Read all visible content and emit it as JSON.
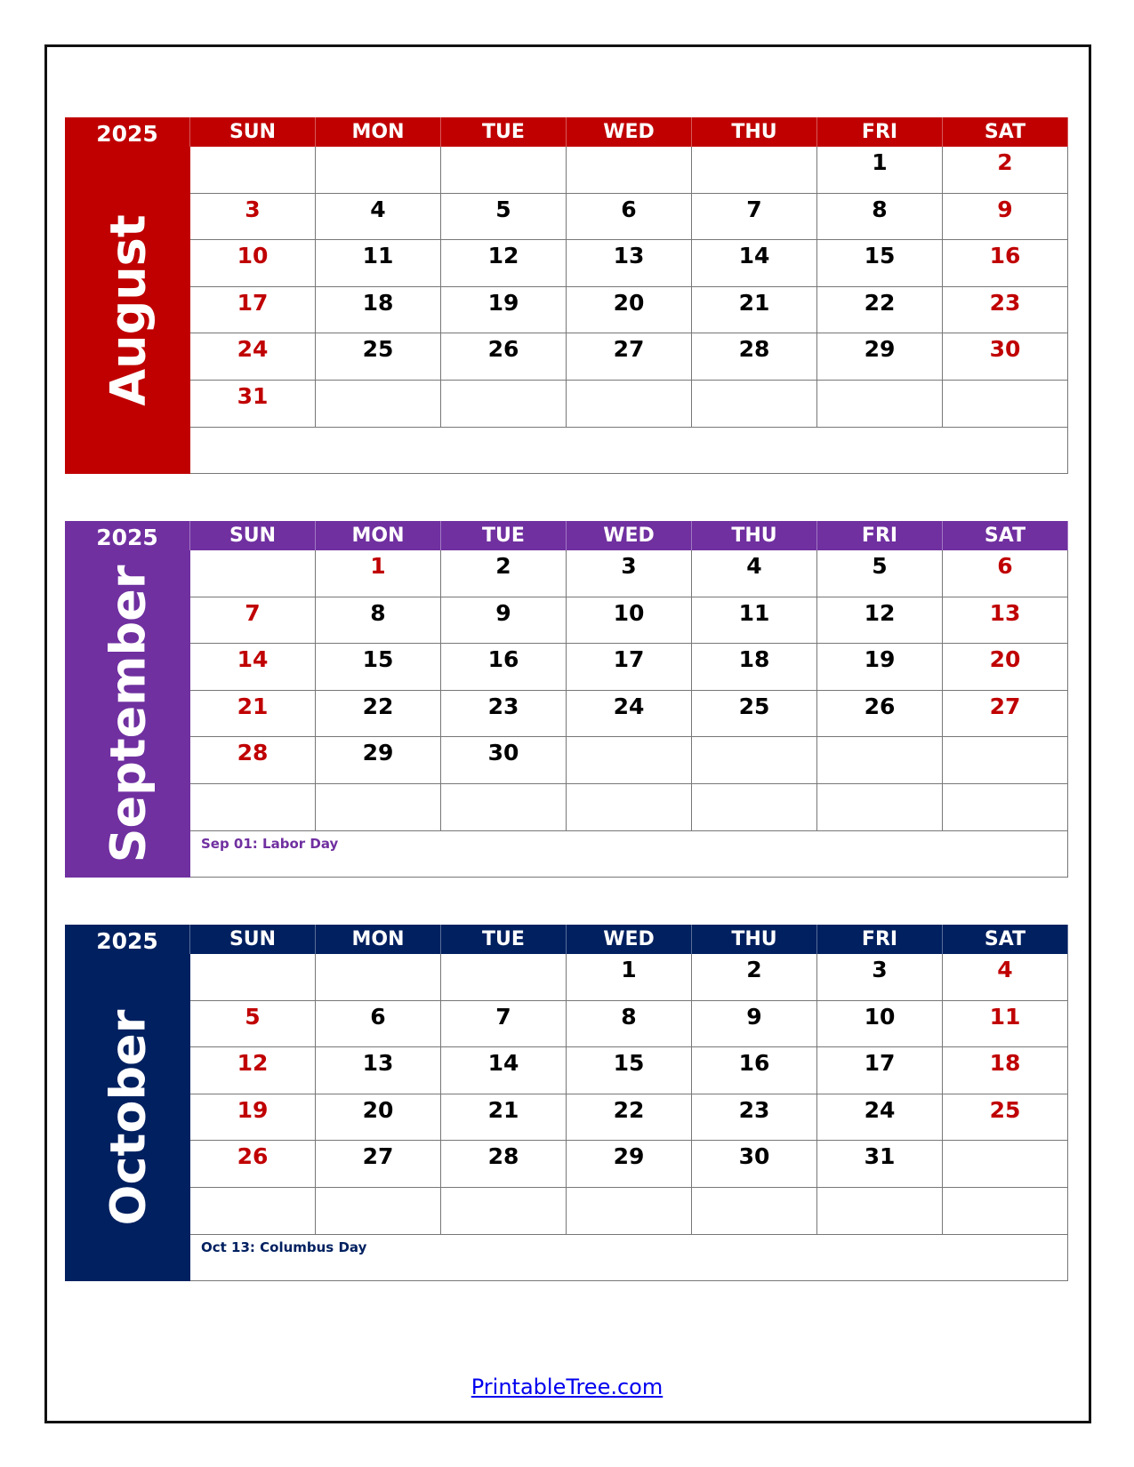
{
  "weekdays": [
    "SUN",
    "MON",
    "TUE",
    "WED",
    "THU",
    "FRI",
    "SAT"
  ],
  "colors": {
    "weekend": "#c00000",
    "text": "#000000"
  },
  "months": [
    {
      "name": "August",
      "year": "2025",
      "color": "#c00000",
      "weeks": [
        [
          "",
          "",
          "",
          "",
          "",
          "1",
          "2"
        ],
        [
          "3",
          "4",
          "5",
          "6",
          "7",
          "8",
          "9"
        ],
        [
          "10",
          "11",
          "12",
          "13",
          "14",
          "15",
          "16"
        ],
        [
          "17",
          "18",
          "19",
          "20",
          "21",
          "22",
          "23"
        ],
        [
          "24",
          "25",
          "26",
          "27",
          "28",
          "29",
          "30"
        ],
        [
          "31",
          "",
          "",
          "",
          "",
          "",
          ""
        ]
      ],
      "holidays": [],
      "note": ""
    },
    {
      "name": "September",
      "year": "2025",
      "color": "#7030a0",
      "weeks": [
        [
          "",
          "1",
          "2",
          "3",
          "4",
          "5",
          "6"
        ],
        [
          "7",
          "8",
          "9",
          "10",
          "11",
          "12",
          "13"
        ],
        [
          "14",
          "15",
          "16",
          "17",
          "18",
          "19",
          "20"
        ],
        [
          "21",
          "22",
          "23",
          "24",
          "25",
          "26",
          "27"
        ],
        [
          "28",
          "29",
          "30",
          "",
          "",
          "",
          ""
        ],
        [
          "",
          "",
          "",
          "",
          "",
          "",
          ""
        ]
      ],
      "holidays": [
        "1"
      ],
      "note": "Sep 01: Labor Day"
    },
    {
      "name": "October",
      "year": "2025",
      "color": "#002060",
      "weeks": [
        [
          "",
          "",
          "",
          "1",
          "2",
          "3",
          "4"
        ],
        [
          "5",
          "6",
          "7",
          "8",
          "9",
          "10",
          "11"
        ],
        [
          "12",
          "13",
          "14",
          "15",
          "16",
          "17",
          "18"
        ],
        [
          "19",
          "20",
          "21",
          "22",
          "23",
          "24",
          "25"
        ],
        [
          "26",
          "27",
          "28",
          "29",
          "30",
          "31",
          ""
        ],
        [
          "",
          "",
          "",
          "",
          "",
          "",
          ""
        ]
      ],
      "holidays": [],
      "note": "Oct 13: Columbus Day"
    }
  ],
  "footer": {
    "link": "PrintableTree.com"
  }
}
